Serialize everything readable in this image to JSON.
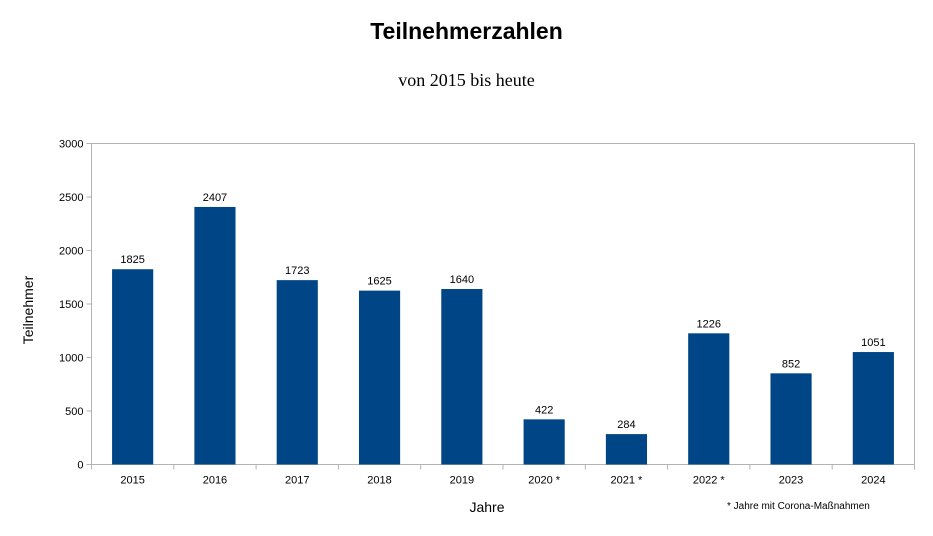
{
  "chart_data": {
    "type": "bar",
    "title": "Teilnehmerzahlen",
    "subtitle": "von 2015 bis heute",
    "xlabel": "Jahre",
    "ylabel": "Teilnehmer",
    "categories": [
      "2015",
      "2016",
      "2017",
      "2018",
      "2019",
      "2020 *",
      "2021 *",
      "2022 *",
      "2023",
      "2024"
    ],
    "values": [
      1825,
      2407,
      1723,
      1625,
      1640,
      422,
      284,
      1226,
      852,
      1051
    ],
    "ylim": [
      0,
      3000
    ],
    "yticks": [
      0,
      500,
      1000,
      1500,
      2000,
      2500,
      3000
    ],
    "grid": false,
    "bar_color": "#004586",
    "annotation": "* Jahre mit Corona-Maßnahmen"
  }
}
